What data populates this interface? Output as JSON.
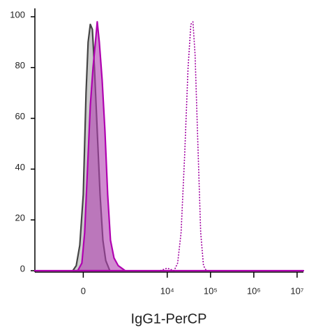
{
  "chart_data": {
    "type": "line",
    "x_label": "IgG1-PerCP",
    "xscale": "biexponential",
    "xlim": [
      -1500,
      14000000
    ],
    "ylim": [
      0,
      100
    ],
    "xticks": [
      0,
      {
        "value": 10000,
        "label": "10⁴"
      },
      {
        "value": 100000,
        "label": "10⁵"
      },
      {
        "value": 1000000,
        "label": "10⁶"
      },
      {
        "value": 10000000,
        "label": "10⁷"
      }
    ],
    "yticks": [
      0,
      20,
      40,
      60,
      80,
      100
    ],
    "series": [
      {
        "color": "#444444",
        "fill": "#a8a8a8",
        "style": "filled",
        "x": [
          -135,
          -88,
          -43,
          0,
          34,
          60,
          88,
          116,
          145,
          187,
          234,
          286,
          345,
          444
        ],
        "values": [
          0,
          2,
          10,
          30,
          70,
          90,
          97,
          95,
          80,
          55,
          30,
          12,
          4,
          0
        ]
      },
      {
        "color": "#b000b0",
        "fill": "#b040b0",
        "style": "filled",
        "x": [
          -1500,
          -69,
          -17,
          17,
          52,
          88,
          125,
          166,
          187,
          221,
          272,
          328,
          390,
          462,
          568,
          720,
          1058,
          14000000
        ],
        "values": [
          0,
          0,
          3,
          15,
          40,
          65,
          80,
          92,
          98,
          90,
          75,
          55,
          30,
          12,
          5,
          2,
          0,
          0
        ]
      },
      {
        "color": "#a000a0",
        "style": "dotted",
        "x": [
          6850,
          9960,
          14400,
          17400,
          20900,
          25200,
          30300,
          35200,
          39300,
          44000,
          51000,
          59300,
          68800,
          80000
        ],
        "values": [
          0,
          1,
          0,
          3,
          15,
          45,
          80,
          97,
          98,
          85,
          50,
          15,
          2,
          0
        ]
      }
    ]
  }
}
